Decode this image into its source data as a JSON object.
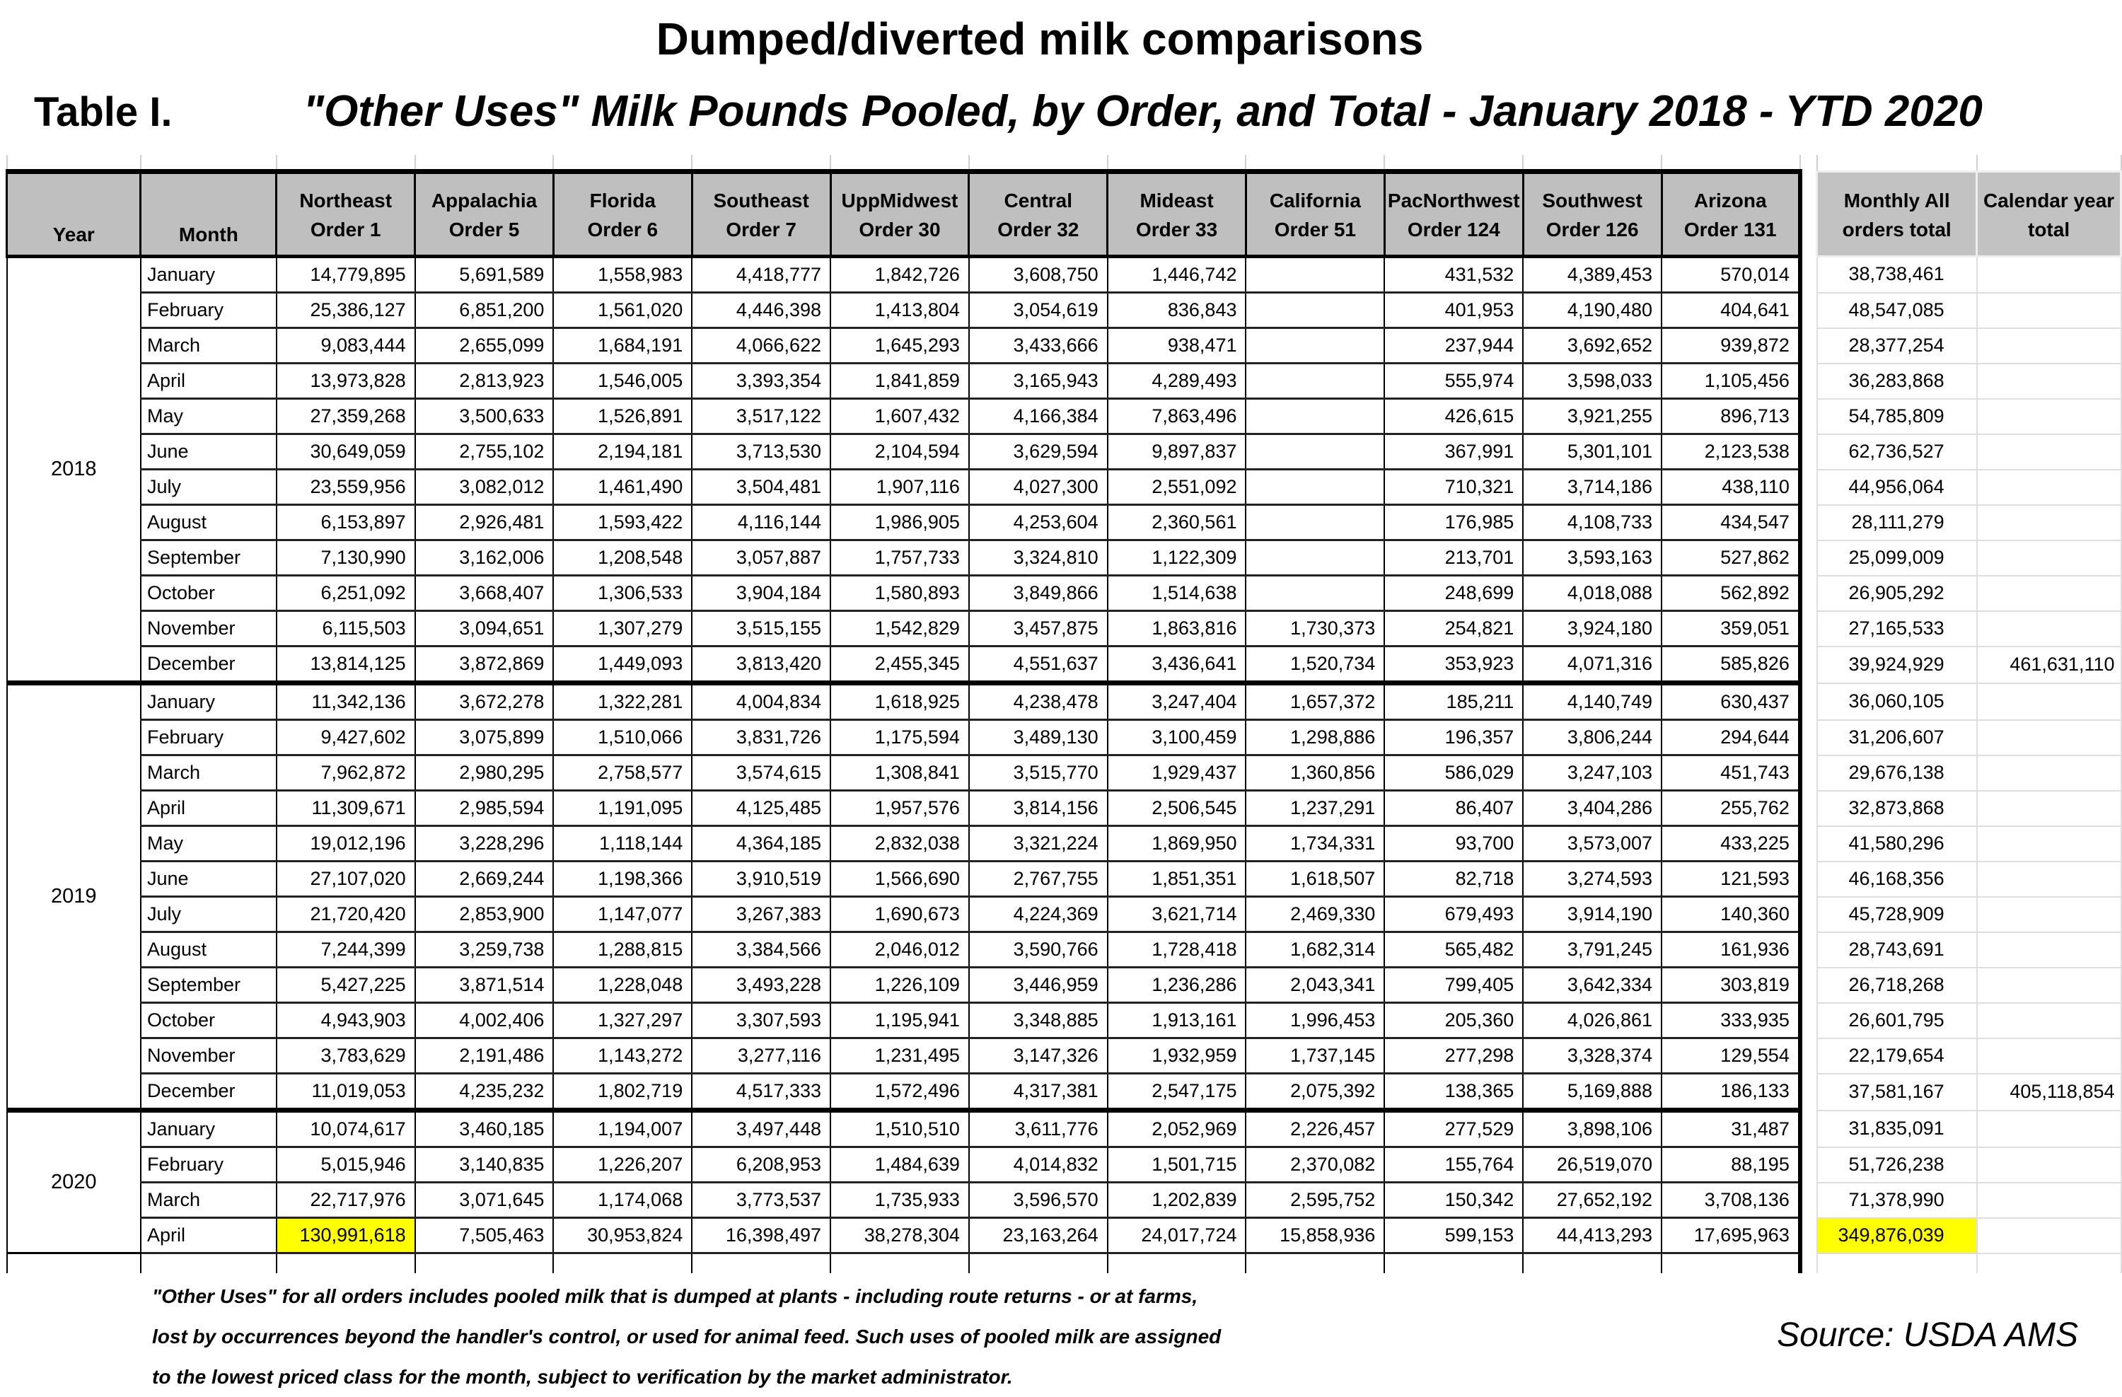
{
  "titles": {
    "main": "Dumped/diverted milk comparisons",
    "table_label": "Table I.",
    "subtitle": "\"Other Uses\" Milk Pounds Pooled, by Order, and Total - January 2018 - YTD 2020"
  },
  "header": {
    "year": "Year",
    "month": "Month",
    "orders": [
      {
        "line1": "Northeast",
        "line2": "Order 1"
      },
      {
        "line1": "Appalachia",
        "line2": "Order 5"
      },
      {
        "line1": "Florida",
        "line2": "Order 6"
      },
      {
        "line1": "Southeast",
        "line2": "Order 7"
      },
      {
        "line1": "UppMidwest",
        "line2": "Order 30"
      },
      {
        "line1": "Central",
        "line2": "Order 32"
      },
      {
        "line1": "Mideast",
        "line2": "Order 33"
      },
      {
        "line1": "California",
        "line2": "Order 51"
      },
      {
        "line1": "PacNorthwest",
        "line2": "Order 124"
      },
      {
        "line1": "Southwest",
        "line2": "Order 126"
      },
      {
        "line1": "Arizona",
        "line2": "Order 131"
      }
    ],
    "monthly_total": {
      "line1": "Monthly All",
      "line2": "orders total"
    },
    "calendar_total": {
      "line1": "Calendar year",
      "line2": "total"
    }
  },
  "highlight_color": "#ffff00",
  "years": [
    {
      "year": "2018",
      "rows": [
        {
          "month": "January",
          "values": [
            "14,779,895",
            "5,691,589",
            "1,558,983",
            "4,418,777",
            "1,842,726",
            "3,608,750",
            "1,446,742",
            "",
            "431,532",
            "4,389,453",
            "570,014"
          ],
          "monthly": "38,738,461",
          "calendar": ""
        },
        {
          "month": "February",
          "values": [
            "25,386,127",
            "6,851,200",
            "1,561,020",
            "4,446,398",
            "1,413,804",
            "3,054,619",
            "836,843",
            "",
            "401,953",
            "4,190,480",
            "404,641"
          ],
          "monthly": "48,547,085",
          "calendar": ""
        },
        {
          "month": "March",
          "values": [
            "9,083,444",
            "2,655,099",
            "1,684,191",
            "4,066,622",
            "1,645,293",
            "3,433,666",
            "938,471",
            "",
            "237,944",
            "3,692,652",
            "939,872"
          ],
          "monthly": "28,377,254",
          "calendar": ""
        },
        {
          "month": "April",
          "values": [
            "13,973,828",
            "2,813,923",
            "1,546,005",
            "3,393,354",
            "1,841,859",
            "3,165,943",
            "4,289,493",
            "",
            "555,974",
            "3,598,033",
            "1,105,456"
          ],
          "monthly": "36,283,868",
          "calendar": ""
        },
        {
          "month": "May",
          "values": [
            "27,359,268",
            "3,500,633",
            "1,526,891",
            "3,517,122",
            "1,607,432",
            "4,166,384",
            "7,863,496",
            "",
            "426,615",
            "3,921,255",
            "896,713"
          ],
          "monthly": "54,785,809",
          "calendar": ""
        },
        {
          "month": "June",
          "values": [
            "30,649,059",
            "2,755,102",
            "2,194,181",
            "3,713,530",
            "2,104,594",
            "3,629,594",
            "9,897,837",
            "",
            "367,991",
            "5,301,101",
            "2,123,538"
          ],
          "monthly": "62,736,527",
          "calendar": ""
        },
        {
          "month": "July",
          "values": [
            "23,559,956",
            "3,082,012",
            "1,461,490",
            "3,504,481",
            "1,907,116",
            "4,027,300",
            "2,551,092",
            "",
            "710,321",
            "3,714,186",
            "438,110"
          ],
          "monthly": "44,956,064",
          "calendar": ""
        },
        {
          "month": "August",
          "values": [
            "6,153,897",
            "2,926,481",
            "1,593,422",
            "4,116,144",
            "1,986,905",
            "4,253,604",
            "2,360,561",
            "",
            "176,985",
            "4,108,733",
            "434,547"
          ],
          "monthly": "28,111,279",
          "calendar": ""
        },
        {
          "month": "September",
          "values": [
            "7,130,990",
            "3,162,006",
            "1,208,548",
            "3,057,887",
            "1,757,733",
            "3,324,810",
            "1,122,309",
            "",
            "213,701",
            "3,593,163",
            "527,862"
          ],
          "monthly": "25,099,009",
          "calendar": ""
        },
        {
          "month": "October",
          "values": [
            "6,251,092",
            "3,668,407",
            "1,306,533",
            "3,904,184",
            "1,580,893",
            "3,849,866",
            "1,514,638",
            "",
            "248,699",
            "4,018,088",
            "562,892"
          ],
          "monthly": "26,905,292",
          "calendar": ""
        },
        {
          "month": "November",
          "values": [
            "6,115,503",
            "3,094,651",
            "1,307,279",
            "3,515,155",
            "1,542,829",
            "3,457,875",
            "1,863,816",
            "1,730,373",
            "254,821",
            "3,924,180",
            "359,051"
          ],
          "monthly": "27,165,533",
          "calendar": ""
        },
        {
          "month": "December",
          "values": [
            "13,814,125",
            "3,872,869",
            "1,449,093",
            "3,813,420",
            "2,455,345",
            "4,551,637",
            "3,436,641",
            "1,520,734",
            "353,923",
            "4,071,316",
            "585,826"
          ],
          "monthly": "39,924,929",
          "calendar": "461,631,110"
        }
      ]
    },
    {
      "year": "2019",
      "rows": [
        {
          "month": "January",
          "values": [
            "11,342,136",
            "3,672,278",
            "1,322,281",
            "4,004,834",
            "1,618,925",
            "4,238,478",
            "3,247,404",
            "1,657,372",
            "185,211",
            "4,140,749",
            "630,437"
          ],
          "monthly": "36,060,105",
          "calendar": ""
        },
        {
          "month": "February",
          "values": [
            "9,427,602",
            "3,075,899",
            "1,510,066",
            "3,831,726",
            "1,175,594",
            "3,489,130",
            "3,100,459",
            "1,298,886",
            "196,357",
            "3,806,244",
            "294,644"
          ],
          "monthly": "31,206,607",
          "calendar": ""
        },
        {
          "month": "March",
          "values": [
            "7,962,872",
            "2,980,295",
            "2,758,577",
            "3,574,615",
            "1,308,841",
            "3,515,770",
            "1,929,437",
            "1,360,856",
            "586,029",
            "3,247,103",
            "451,743"
          ],
          "monthly": "29,676,138",
          "calendar": ""
        },
        {
          "month": "April",
          "values": [
            "11,309,671",
            "2,985,594",
            "1,191,095",
            "4,125,485",
            "1,957,576",
            "3,814,156",
            "2,506,545",
            "1,237,291",
            "86,407",
            "3,404,286",
            "255,762"
          ],
          "monthly": "32,873,868",
          "calendar": ""
        },
        {
          "month": "May",
          "values": [
            "19,012,196",
            "3,228,296",
            "1,118,144",
            "4,364,185",
            "2,832,038",
            "3,321,224",
            "1,869,950",
            "1,734,331",
            "93,700",
            "3,573,007",
            "433,225"
          ],
          "monthly": "41,580,296",
          "calendar": ""
        },
        {
          "month": "June",
          "values": [
            "27,107,020",
            "2,669,244",
            "1,198,366",
            "3,910,519",
            "1,566,690",
            "2,767,755",
            "1,851,351",
            "1,618,507",
            "82,718",
            "3,274,593",
            "121,593"
          ],
          "monthly": "46,168,356",
          "calendar": ""
        },
        {
          "month": "July",
          "values": [
            "21,720,420",
            "2,853,900",
            "1,147,077",
            "3,267,383",
            "1,690,673",
            "4,224,369",
            "3,621,714",
            "2,469,330",
            "679,493",
            "3,914,190",
            "140,360"
          ],
          "monthly": "45,728,909",
          "calendar": ""
        },
        {
          "month": "August",
          "values": [
            "7,244,399",
            "3,259,738",
            "1,288,815",
            "3,384,566",
            "2,046,012",
            "3,590,766",
            "1,728,418",
            "1,682,314",
            "565,482",
            "3,791,245",
            "161,936"
          ],
          "monthly": "28,743,691",
          "calendar": ""
        },
        {
          "month": "September",
          "values": [
            "5,427,225",
            "3,871,514",
            "1,228,048",
            "3,493,228",
            "1,226,109",
            "3,446,959",
            "1,236,286",
            "2,043,341",
            "799,405",
            "3,642,334",
            "303,819"
          ],
          "monthly": "26,718,268",
          "calendar": ""
        },
        {
          "month": "October",
          "values": [
            "4,943,903",
            "4,002,406",
            "1,327,297",
            "3,307,593",
            "1,195,941",
            "3,348,885",
            "1,913,161",
            "1,996,453",
            "205,360",
            "4,026,861",
            "333,935"
          ],
          "monthly": "26,601,795",
          "calendar": ""
        },
        {
          "month": "November",
          "values": [
            "3,783,629",
            "2,191,486",
            "1,143,272",
            "3,277,116",
            "1,231,495",
            "3,147,326",
            "1,932,959",
            "1,737,145",
            "277,298",
            "3,328,374",
            "129,554"
          ],
          "monthly": "22,179,654",
          "calendar": ""
        },
        {
          "month": "December",
          "values": [
            "11,019,053",
            "4,235,232",
            "1,802,719",
            "4,517,333",
            "1,572,496",
            "4,317,381",
            "2,547,175",
            "2,075,392",
            "138,365",
            "5,169,888",
            "186,133"
          ],
          "monthly": "37,581,167",
          "calendar": "405,118,854"
        }
      ]
    },
    {
      "year": "2020",
      "rows": [
        {
          "month": "January",
          "values": [
            "10,074,617",
            "3,460,185",
            "1,194,007",
            "3,497,448",
            "1,510,510",
            "3,611,776",
            "2,052,969",
            "2,226,457",
            "277,529",
            "3,898,106",
            "31,487"
          ],
          "monthly": "31,835,091",
          "calendar": ""
        },
        {
          "month": "February",
          "values": [
            "5,015,946",
            "3,140,835",
            "1,226,207",
            "6,208,953",
            "1,484,639",
            "4,014,832",
            "1,501,715",
            "2,370,082",
            "155,764",
            "26,519,070",
            "88,195"
          ],
          "monthly": "51,726,238",
          "calendar": ""
        },
        {
          "month": "March",
          "values": [
            "22,717,976",
            "3,071,645",
            "1,174,068",
            "3,773,537",
            "1,735,933",
            "3,596,570",
            "1,202,839",
            "2,595,752",
            "150,342",
            "27,652,192",
            "3,708,136"
          ],
          "monthly": "71,378,990",
          "calendar": ""
        },
        {
          "month": "April",
          "values": [
            "130,991,618",
            "7,505,463",
            "30,953,824",
            "16,398,497",
            "38,278,304",
            "23,163,264",
            "24,017,724",
            "15,858,936",
            "599,153",
            "44,413,293",
            "17,695,963"
          ],
          "monthly": "349,876,039",
          "calendar": "",
          "hl_col": 0,
          "hl_monthly": true
        }
      ]
    }
  ],
  "footnote": {
    "lines": [
      "\"Other Uses\" for all orders includes pooled milk that is dumped at plants - including route returns - or at farms,",
      "lost by occurrences beyond the handler's control, or used for animal feed.  Such uses of pooled milk are assigned",
      "to the lowest priced class for the month, subject to verification by the market administrator."
    ]
  },
  "source": "Source: USDA AMS"
}
